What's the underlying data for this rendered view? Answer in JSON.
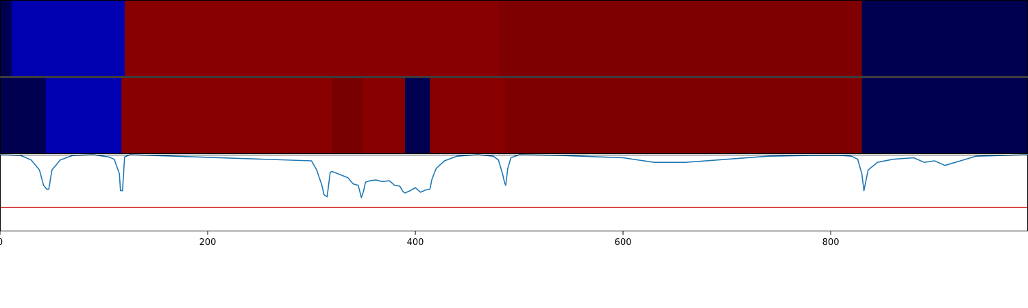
{
  "chart_data": [
    {
      "type": "heatmap",
      "x_range": [
        0,
        990
      ],
      "segments": [
        {
          "start": 0,
          "end": 11,
          "color": "#000050"
        },
        {
          "start": 11,
          "end": 120,
          "color": "#0000b0"
        },
        {
          "start": 120,
          "end": 480,
          "color": "#880000"
        },
        {
          "start": 480,
          "end": 830,
          "color": "#7f0000"
        },
        {
          "start": 830,
          "end": 990,
          "color": "#000050"
        }
      ]
    },
    {
      "type": "heatmap",
      "x_range": [
        0,
        990
      ],
      "segments": [
        {
          "start": 0,
          "end": 44,
          "color": "#000050"
        },
        {
          "start": 44,
          "end": 117,
          "color": "#0000b0"
        },
        {
          "start": 117,
          "end": 320,
          "color": "#880000"
        },
        {
          "start": 320,
          "end": 350,
          "color": "#780000"
        },
        {
          "start": 350,
          "end": 390,
          "color": "#880000"
        },
        {
          "start": 390,
          "end": 414,
          "color": "#000050"
        },
        {
          "start": 414,
          "end": 487,
          "color": "#880000"
        },
        {
          "start": 487,
          "end": 830,
          "color": "#7f0000"
        },
        {
          "start": 830,
          "end": 990,
          "color": "#000050"
        }
      ]
    },
    {
      "type": "line",
      "xlim": [
        0,
        990
      ],
      "ylim": [
        0,
        1
      ],
      "xticks": [
        0,
        200,
        400,
        600,
        800
      ],
      "xtick_labels": [
        "0",
        "200",
        "400",
        "600",
        "800"
      ],
      "threshold": {
        "value": 0.31,
        "color": "#d62728"
      },
      "series": [
        {
          "color": "#1f77b4",
          "x": [
            0,
            20,
            30,
            38,
            42,
            45,
            47,
            50,
            58,
            70,
            90,
            105,
            110,
            115,
            116,
            118,
            120,
            125,
            300,
            305,
            310,
            312,
            315,
            318,
            320,
            335,
            340,
            345,
            348,
            350,
            352,
            356,
            362,
            368,
            375,
            380,
            385,
            388,
            390,
            395,
            400,
            405,
            410,
            414,
            416,
            420,
            428,
            440,
            460,
            475,
            480,
            484,
            486,
            487,
            489,
            492,
            500,
            540,
            600,
            630,
            660,
            700,
            740,
            780,
            800,
            810,
            820,
            826,
            830,
            832,
            836,
            845,
            860,
            880,
            890,
            900,
            910,
            920,
            940,
            990
          ],
          "y": [
            1.0,
            0.99,
            0.93,
            0.8,
            0.6,
            0.55,
            0.55,
            0.8,
            0.93,
            0.99,
            1.0,
            0.97,
            0.94,
            0.75,
            0.53,
            0.53,
            0.97,
            1.0,
            0.92,
            0.8,
            0.6,
            0.48,
            0.45,
            0.77,
            0.78,
            0.7,
            0.62,
            0.6,
            0.44,
            0.52,
            0.64,
            0.66,
            0.67,
            0.65,
            0.66,
            0.6,
            0.59,
            0.52,
            0.5,
            0.53,
            0.57,
            0.51,
            0.54,
            0.55,
            0.68,
            0.82,
            0.92,
            0.98,
            1.0,
            0.98,
            0.93,
            0.75,
            0.63,
            0.6,
            0.82,
            0.96,
            1.0,
            0.99,
            0.96,
            0.9,
            0.9,
            0.94,
            0.98,
            0.99,
            0.99,
            0.99,
            0.98,
            0.94,
            0.75,
            0.53,
            0.8,
            0.9,
            0.94,
            0.96,
            0.9,
            0.92,
            0.86,
            0.9,
            0.98,
            1.0
          ]
        }
      ]
    }
  ]
}
